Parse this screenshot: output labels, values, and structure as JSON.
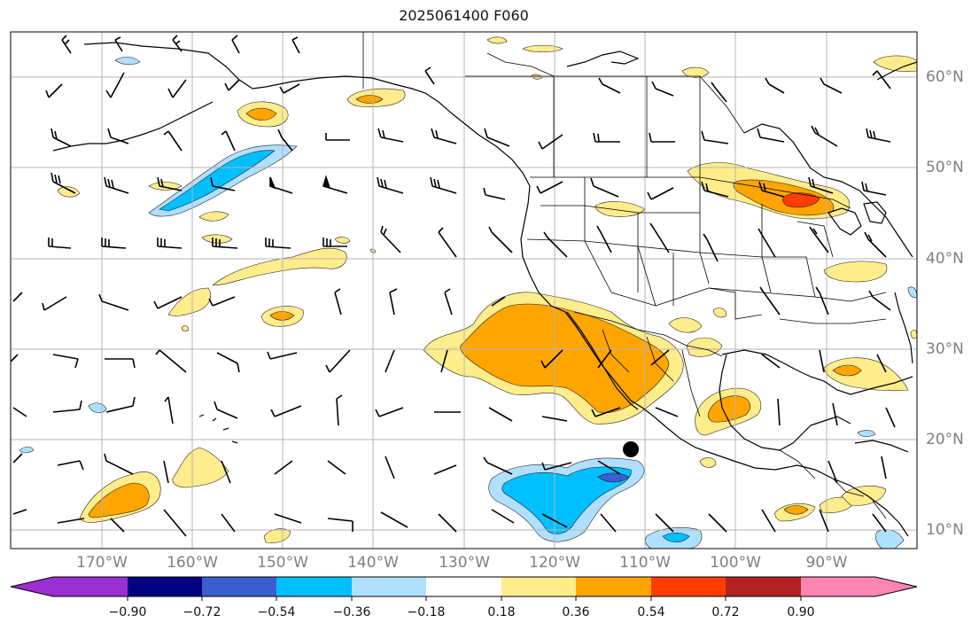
{
  "title": "2025061400 F060",
  "longitude_labels": [
    "170°W",
    "160°W",
    "150°W",
    "140°W",
    "130°W",
    "120°W",
    "110°W",
    "100°W",
    "90°W"
  ],
  "latitude_labels": [
    "60°N",
    "50°N",
    "40°N",
    "30°N",
    "20°N",
    "10°N"
  ],
  "colorbar": {
    "tick_labels": [
      "−0.90",
      "−0.72",
      "−0.54",
      "−0.36",
      "−0.18",
      "0.18",
      "0.36",
      "0.54",
      "0.72",
      "0.90"
    ],
    "colors": [
      "#9b30d0",
      "#000080",
      "#3a5fcd",
      "#00bfff",
      "#b0e0ff",
      "#ffffff",
      "#ffec8b",
      "#ffa500",
      "#ff3d00",
      "#b22222",
      "#ff85b3"
    ]
  },
  "map_data": {
    "type": "contour-fill-with-wind-barbs",
    "domain": {
      "lon_min": -180,
      "lon_max": -80,
      "lat_min": 8,
      "lat_max": 65
    },
    "marker": {
      "name": "black-dot",
      "lon": -111,
      "lat": 19
    }
  }
}
